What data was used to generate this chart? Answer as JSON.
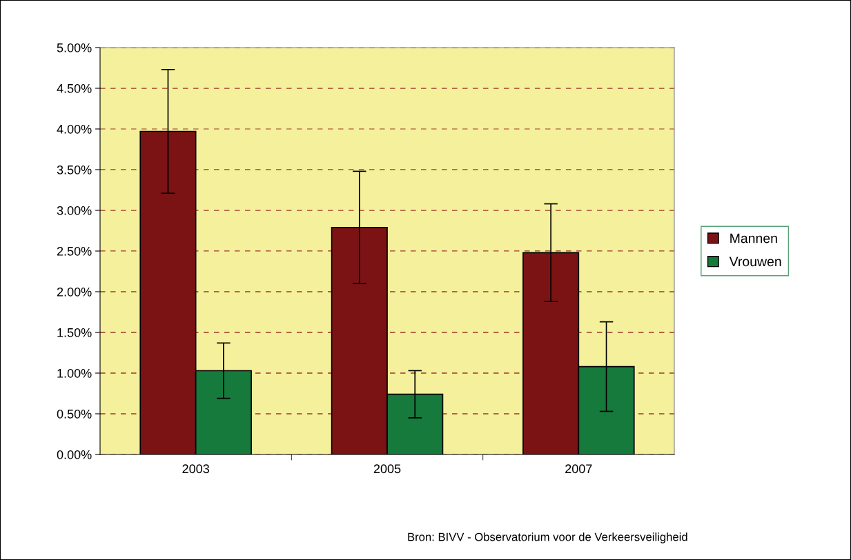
{
  "chart_data": {
    "type": "bar",
    "categories": [
      "2003",
      "2005",
      "2007"
    ],
    "series": [
      {
        "name": "Mannen",
        "color": "#7b1315",
        "values": [
          3.97,
          2.79,
          2.48
        ],
        "errors": [
          0.76,
          0.69,
          0.6
        ]
      },
      {
        "name": "Vrouwen",
        "color": "#157a3c",
        "values": [
          1.03,
          0.74,
          1.08
        ],
        "errors": [
          0.34,
          0.29,
          0.55
        ]
      }
    ],
    "ylim": [
      0,
      5
    ],
    "yticks": [
      {
        "value": 0,
        "label": "0.00%"
      },
      {
        "value": 0.5,
        "label": "0.50%"
      },
      {
        "value": 1,
        "label": "1.00%"
      },
      {
        "value": 1.5,
        "label": "1.50%"
      },
      {
        "value": 2,
        "label": "2.00%"
      },
      {
        "value": 2.5,
        "label": "2.50%"
      },
      {
        "value": 3,
        "label": "3.00%"
      },
      {
        "value": 3.5,
        "label": "3.50%"
      },
      {
        "value": 4,
        "label": "4.00%"
      },
      {
        "value": 4.5,
        "label": "4.50%"
      },
      {
        "value": 5,
        "label": "5.00%"
      }
    ],
    "grid": "y",
    "legend": "right",
    "annotations": [
      "Bron: BIVV - Observatorium voor de Verkeersveiligheid"
    ]
  }
}
